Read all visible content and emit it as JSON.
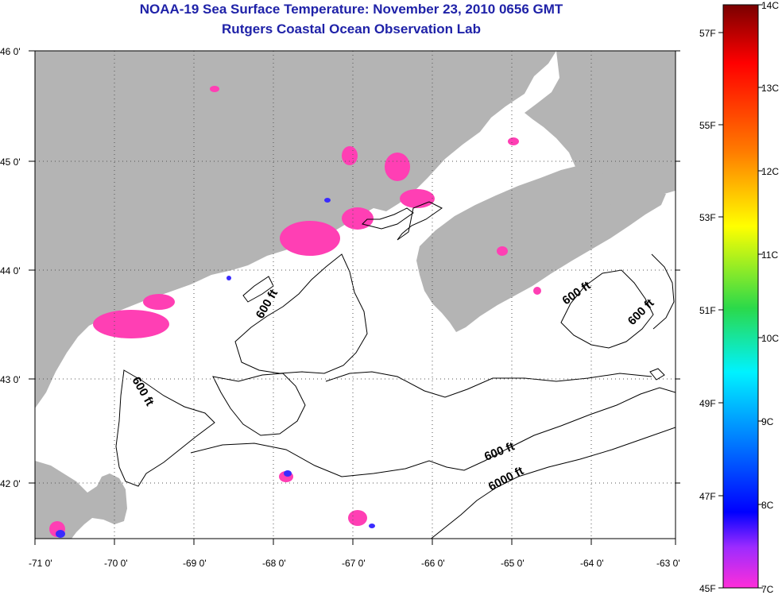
{
  "title": "NOAA-19 Sea Surface Temperature:  November 23, 2010 0656 GMT",
  "subtitle": "Rutgers Coastal Ocean Observation Lab",
  "colors": {
    "land": "#b4b4b4",
    "warm_patch": "#ff3fb4",
    "cool_patch": "#3a2bff",
    "text": "#1f22a8"
  },
  "axes": {
    "lon_ticks": [
      "-71 0'",
      "-70 0'",
      "-69 0'",
      "-68 0'",
      "-67 0'",
      "-66 0'",
      "-65 0'",
      "-64 0'",
      "-63 0'"
    ],
    "lat_ticks": [
      "46 0'",
      "45 0'",
      "44 0'",
      "43 0'",
      "42 0'"
    ]
  },
  "contour_labels": [
    "600 ft",
    "600 ft",
    "600 ft",
    "600 ft",
    "6000 ft"
  ],
  "colorbar": {
    "celsius": [
      "14C",
      "13C",
      "12C",
      "11C",
      "10C",
      "9C",
      "8C",
      "7C"
    ],
    "fahrenheit": [
      "57F",
      "55F",
      "53F",
      "51F",
      "49F",
      "47F",
      "45F"
    ]
  }
}
